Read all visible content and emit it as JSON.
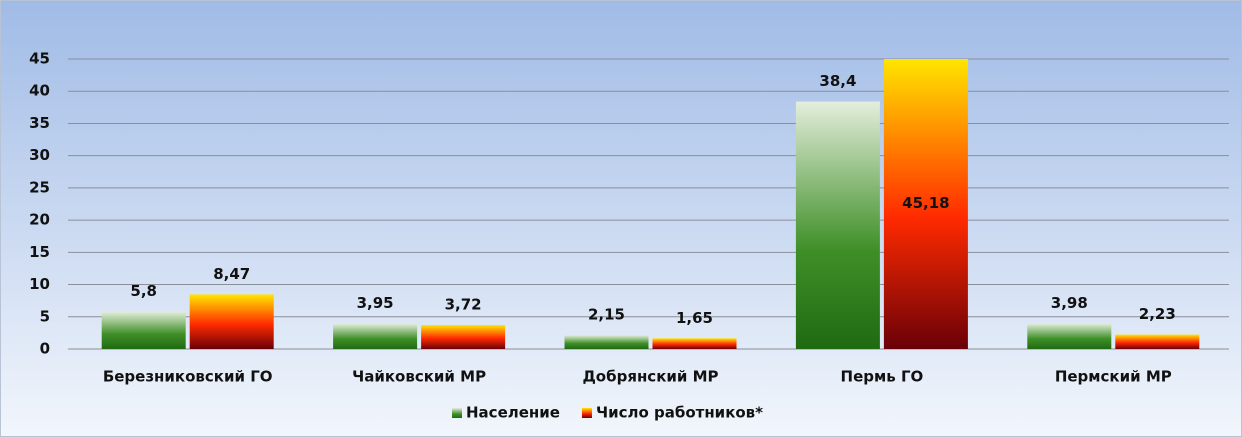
{
  "chart_data": {
    "type": "bar",
    "categories": [
      "Березниковский ГО",
      "Чайковский МР",
      "Добрянский МР",
      "Пермь ГО",
      "Пермский МР"
    ],
    "series": [
      {
        "name": "Население",
        "color": "#3f8f28",
        "values": [
          5.8,
          3.95,
          2.15,
          38.4,
          3.98
        ],
        "value_labels": [
          "5,8",
          "3,95",
          "2,15",
          "38,4",
          "3,98"
        ]
      },
      {
        "name": "Число работников*",
        "color": "#ff2a00",
        "values": [
          8.47,
          3.72,
          1.65,
          45.18,
          2.23
        ],
        "value_labels": [
          "8,47",
          "3,72",
          "1,65",
          "45,18",
          "2,23"
        ]
      }
    ],
    "ylim": [
      0,
      45
    ],
    "yticks": [
      0,
      5,
      10,
      15,
      20,
      25,
      30,
      35,
      40,
      45
    ],
    "grid": true,
    "legend": "bottom"
  }
}
